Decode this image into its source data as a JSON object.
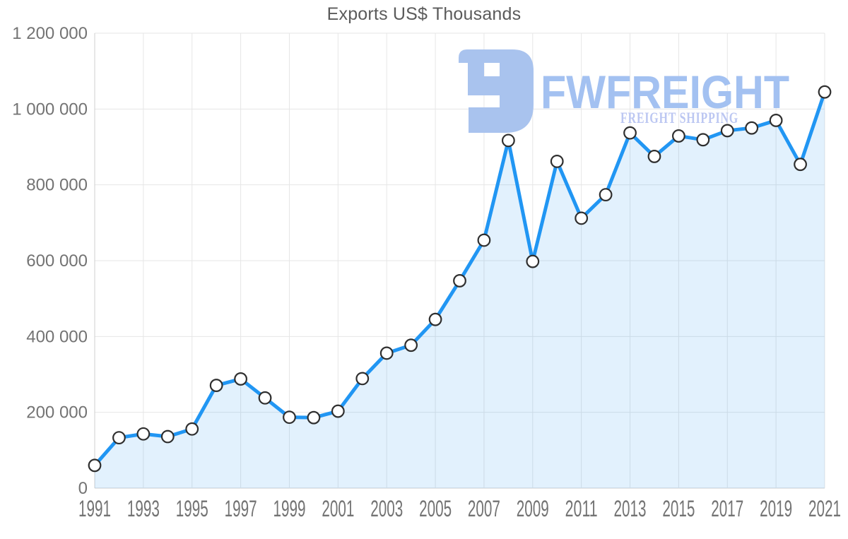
{
  "title": "Exports US$ Thousands",
  "watermark": {
    "brand": "FWFREIGHT",
    "tagline": "FREIGHT SHIPPING",
    "logo_color": "#a9c3ee",
    "brand_color": "#a3c1f1",
    "tagline_color": "#bcc7f2"
  },
  "colors": {
    "line": "#2196f3",
    "area": "rgba(33,150,243,0.13)",
    "marker_fill": "#ffffff",
    "marker_stroke": "#2f2f2f",
    "grid": "#e6e6e6",
    "axis": "#cfcfcf",
    "tick_label": "#737373",
    "title": "#5b5b5b",
    "background": "#ffffff"
  },
  "chart_data": {
    "type": "area",
    "title": "Exports US$ Thousands",
    "x": [
      1991,
      1992,
      1993,
      1994,
      1995,
      1996,
      1997,
      1998,
      1999,
      2000,
      2001,
      2002,
      2003,
      2004,
      2005,
      2006,
      2007,
      2008,
      2009,
      2010,
      2011,
      2012,
      2013,
      2014,
      2015,
      2016,
      2017,
      2018,
      2019,
      2020,
      2021
    ],
    "series": [
      {
        "name": "Exports US$ Thousands",
        "values": [
          60000,
          133000,
          143000,
          136000,
          156000,
          271000,
          288000,
          238000,
          187000,
          186000,
          203000,
          289000,
          356000,
          377000,
          445000,
          547000,
          654000,
          917000,
          598000,
          862000,
          712000,
          774000,
          937000,
          875000,
          929000,
          919000,
          943000,
          950000,
          970000,
          854000,
          1045000
        ]
      }
    ],
    "ylim": [
      0,
      1200000
    ],
    "ytick_step": 200000,
    "ytick_labels": [
      "0",
      "200 000",
      "400 000",
      "600 000",
      "800 000",
      "1 000 000",
      "1 200 000"
    ],
    "xticks": [
      1991,
      1993,
      1995,
      1997,
      1999,
      2001,
      2003,
      2005,
      2007,
      2009,
      2011,
      2013,
      2015,
      2017,
      2019,
      2021
    ],
    "grid": true,
    "legend": "none",
    "marker": "circle"
  }
}
